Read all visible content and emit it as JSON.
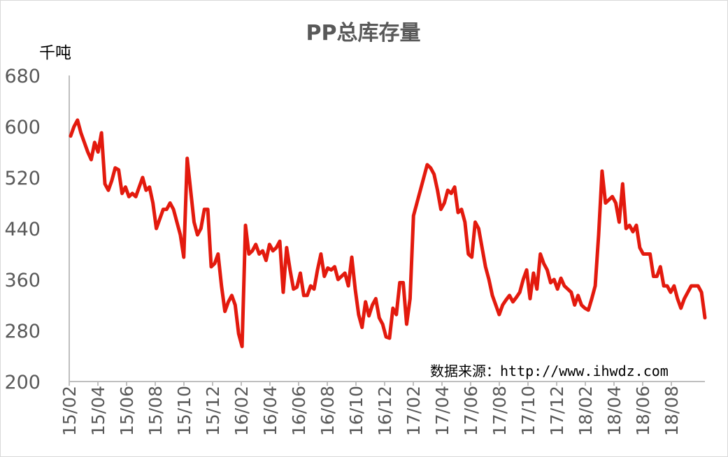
{
  "chart_data": {
    "type": "line",
    "title": "PP总库存量",
    "ylabel": "千吨",
    "source": "数据来源：http://www.ihwdz.com",
    "ylim": [
      200,
      680
    ],
    "yticks": [
      200,
      280,
      360,
      440,
      520,
      600,
      680
    ],
    "x_tick_labels": [
      "15/02",
      "15/04",
      "15/06",
      "15/08",
      "15/10",
      "15/12",
      "16/02",
      "16/04",
      "16/06",
      "16/08",
      "16/10",
      "16/12",
      "17/02",
      "17/04",
      "17/06",
      "17/08",
      "17/10",
      "17/12",
      "18/02",
      "18/04",
      "18/06",
      "18/08"
    ],
    "grid": false,
    "legend": "none",
    "color": "#e31a0e",
    "series": [
      {
        "values": [
          585,
          600,
          610,
          590,
          575,
          560,
          548,
          575,
          560,
          590,
          510,
          500,
          515,
          535,
          532,
          495,
          505,
          490,
          495,
          490,
          505,
          520,
          500,
          505,
          480,
          440,
          455,
          470,
          470,
          480,
          470,
          450,
          430,
          395,
          550,
          500,
          450,
          430,
          440,
          470,
          470,
          380,
          385,
          400,
          350,
          310,
          325,
          335,
          320,
          275,
          255,
          445,
          400,
          405,
          415,
          400,
          405,
          390,
          415,
          405,
          410,
          420,
          340,
          410,
          375,
          345,
          348,
          370,
          335,
          335,
          350,
          345,
          375,
          400,
          365,
          378,
          375,
          380,
          360,
          365,
          370,
          350,
          395,
          345,
          305,
          285,
          325,
          303,
          320,
          330,
          300,
          290,
          270,
          268,
          315,
          305,
          355,
          355,
          290,
          330,
          460,
          480,
          500,
          520,
          540,
          535,
          525,
          500,
          470,
          480,
          500,
          495,
          505,
          465,
          470,
          450,
          400,
          395,
          450,
          440,
          410,
          380,
          360,
          335,
          320,
          305,
          320,
          328,
          335,
          325,
          332,
          340,
          360,
          375,
          330,
          370,
          345,
          400,
          385,
          375,
          355,
          360,
          345,
          362,
          350,
          345,
          340,
          320,
          335,
          320,
          315,
          312,
          330,
          350,
          430,
          530,
          480,
          485,
          490,
          480,
          450,
          510,
          440,
          445,
          435,
          445,
          410,
          400,
          400,
          400,
          365,
          365,
          380,
          350,
          350,
          340,
          350,
          330,
          315,
          330,
          340,
          350,
          350,
          350,
          340,
          300
        ]
      }
    ]
  }
}
